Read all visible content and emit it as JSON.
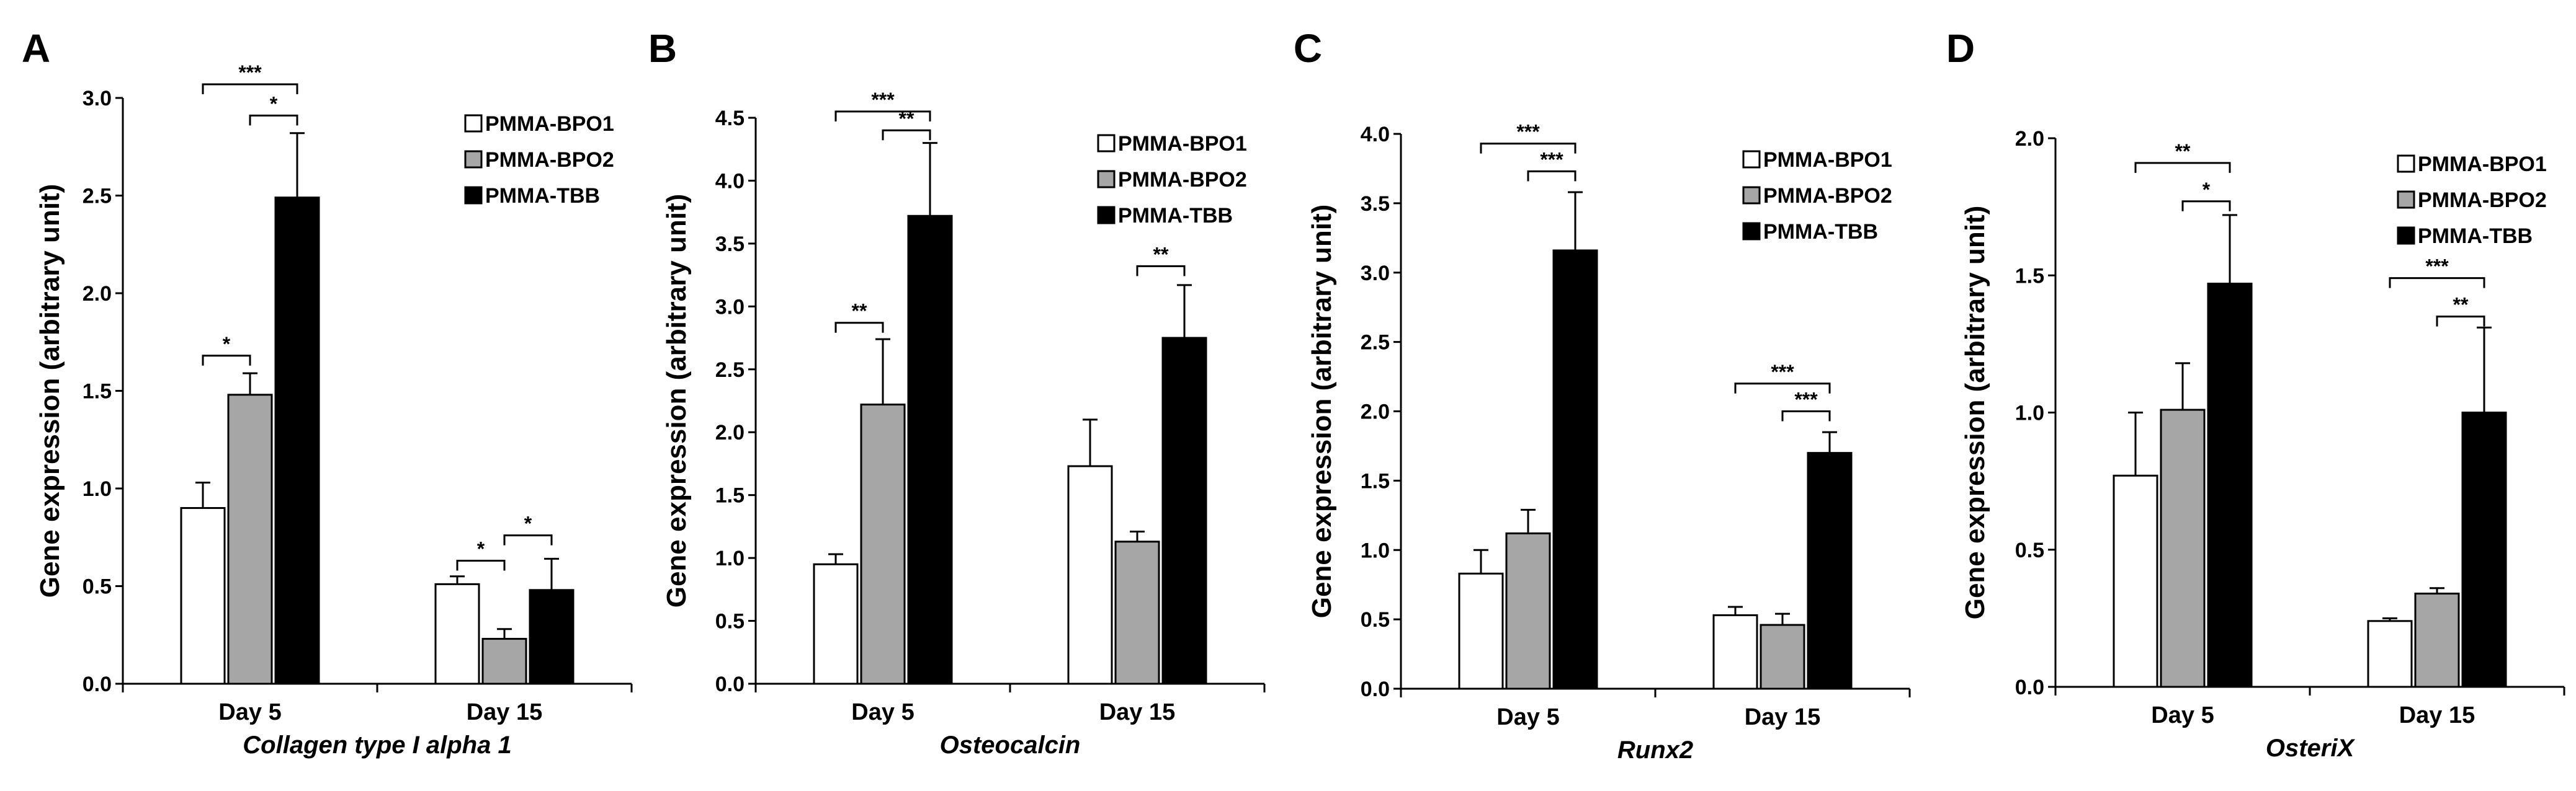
{
  "chart_data": [
    {
      "type": "bar",
      "panel": "A",
      "ylabel": "Gene expression (arbitrary unit)",
      "xlabel": "Collagen type I alpha 1",
      "ylim": [
        0,
        3.0
      ],
      "yticks": [
        "0.0",
        "0.5",
        "1.0",
        "1.5",
        "2.0",
        "2.5",
        "3.0"
      ],
      "categories": [
        "Day 5",
        "Day 15"
      ],
      "series": [
        {
          "name": "PMMA-BPO1",
          "color": "#ffffff",
          "values": [
            0.9,
            0.51
          ],
          "errors": [
            0.13,
            0.04
          ]
        },
        {
          "name": "PMMA-BPO2",
          "color": "#a6a6a6",
          "values": [
            1.48,
            0.23
          ],
          "errors": [
            0.11,
            0.05
          ]
        },
        {
          "name": "PMMA-TBB",
          "color": "#000000",
          "values": [
            2.49,
            0.48
          ],
          "errors": [
            0.33,
            0.16
          ]
        }
      ],
      "significance": [
        {
          "cat": 0,
          "from": 0,
          "to": 2,
          "label": "***",
          "y": 3.07
        },
        {
          "cat": 0,
          "from": 1,
          "to": 2,
          "label": "*",
          "y": 2.91
        },
        {
          "cat": 0,
          "from": 0,
          "to": 1,
          "label": "*",
          "y": 1.68
        },
        {
          "cat": 1,
          "from": 0,
          "to": 1,
          "label": "*",
          "y": 0.63
        },
        {
          "cat": 1,
          "from": 1,
          "to": 2,
          "label": "*",
          "y": 0.76
        }
      ]
    },
    {
      "type": "bar",
      "panel": "B",
      "ylabel": "Gene expression (arbitrary unit)",
      "xlabel": "Osteocalcin",
      "ylim": [
        0,
        4.5
      ],
      "yticks": [
        "0.0",
        "0.5",
        "1.0",
        "1.5",
        "2.0",
        "2.5",
        "3.0",
        "3.5",
        "4.0",
        "4.5"
      ],
      "categories": [
        "Day 5",
        "Day 15"
      ],
      "series": [
        {
          "name": "PMMA-BPO1",
          "color": "#ffffff",
          "values": [
            0.95,
            1.73
          ],
          "errors": [
            0.08,
            0.37
          ]
        },
        {
          "name": "PMMA-BPO2",
          "color": "#a6a6a6",
          "values": [
            2.22,
            1.13
          ],
          "errors": [
            0.52,
            0.08
          ]
        },
        {
          "name": "PMMA-TBB",
          "color": "#000000",
          "values": [
            3.72,
            2.75
          ],
          "errors": [
            0.58,
            0.42
          ]
        }
      ],
      "significance": [
        {
          "cat": 0,
          "from": 0,
          "to": 2,
          "label": "***",
          "y": 4.55
        },
        {
          "cat": 0,
          "from": 1,
          "to": 2,
          "label": "**",
          "y": 4.4
        },
        {
          "cat": 0,
          "from": 0,
          "to": 1,
          "label": "**",
          "y": 2.87
        },
        {
          "cat": 1,
          "from": 1,
          "to": 2,
          "label": "**",
          "y": 3.32
        }
      ]
    },
    {
      "type": "bar",
      "panel": "C",
      "ylabel": "Gene expression (arbitrary unit)",
      "xlabel": "Runx2",
      "ylim": [
        0,
        4.0
      ],
      "yticks": [
        "0.0",
        "0.5",
        "1.0",
        "1.5",
        "2.0",
        "2.5",
        "3.0",
        "3.5",
        "4.0"
      ],
      "categories": [
        "Day 5",
        "Day 15"
      ],
      "series": [
        {
          "name": "PMMA-BPO1",
          "color": "#ffffff",
          "values": [
            0.83,
            0.53
          ],
          "errors": [
            0.17,
            0.06
          ]
        },
        {
          "name": "PMMA-BPO2",
          "color": "#a6a6a6",
          "values": [
            1.12,
            0.46
          ],
          "errors": [
            0.17,
            0.08
          ]
        },
        {
          "name": "PMMA-TBB",
          "color": "#000000",
          "values": [
            3.16,
            1.7
          ],
          "errors": [
            0.42,
            0.15
          ]
        }
      ],
      "significance": [
        {
          "cat": 0,
          "from": 0,
          "to": 2,
          "label": "***",
          "y": 3.93
        },
        {
          "cat": 0,
          "from": 1,
          "to": 2,
          "label": "***",
          "y": 3.73
        },
        {
          "cat": 1,
          "from": 0,
          "to": 2,
          "label": "***",
          "y": 2.2
        },
        {
          "cat": 1,
          "from": 1,
          "to": 2,
          "label": "***",
          "y": 2.0
        }
      ]
    },
    {
      "type": "bar",
      "panel": "D",
      "ylabel": "Gene expression (arbitrary unit)",
      "xlabel": "OsteriX",
      "ylim": [
        0,
        2.0
      ],
      "yticks": [
        "0.0",
        "0.5",
        "1.0",
        "1.5",
        "2.0"
      ],
      "categories": [
        "Day 5",
        "Day 15"
      ],
      "series": [
        {
          "name": "PMMA-BPO1",
          "color": "#ffffff",
          "values": [
            0.77,
            0.24
          ],
          "errors": [
            0.23,
            0.01
          ]
        },
        {
          "name": "PMMA-BPO2",
          "color": "#a6a6a6",
          "values": [
            1.01,
            0.34
          ],
          "errors": [
            0.17,
            0.02
          ]
        },
        {
          "name": "PMMA-TBB",
          "color": "#000000",
          "values": [
            1.47,
            1.0
          ],
          "errors": [
            0.25,
            0.31
          ]
        }
      ],
      "significance": [
        {
          "cat": 0,
          "from": 0,
          "to": 2,
          "label": "**",
          "y": 1.91
        },
        {
          "cat": 0,
          "from": 1,
          "to": 2,
          "label": "*",
          "y": 1.77
        },
        {
          "cat": 1,
          "from": 0,
          "to": 2,
          "label": "***",
          "y": 1.49
        },
        {
          "cat": 1,
          "from": 1,
          "to": 2,
          "label": "**",
          "y": 1.35
        }
      ]
    }
  ]
}
